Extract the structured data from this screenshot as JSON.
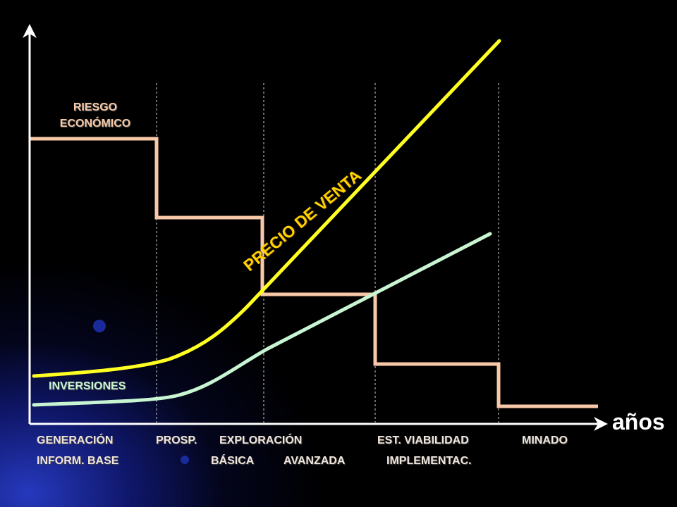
{
  "labels": {
    "riesgo_line1": "RIESGO",
    "riesgo_line2": "ECONÓMICO",
    "inversiones": "INVERSIONES",
    "precio_venta": "PRECIO DE VENTA",
    "x_axis": "años"
  },
  "phases_row1": [
    "GENERACIÓN",
    "PROSP.",
    "EXPLORACIÓN",
    "EST. VIABILIDAD",
    "MINADO"
  ],
  "phases_row2": [
    "INFORM. BASE",
    "BÁSICA",
    "AVANZADA",
    "IMPLEMENTAC."
  ],
  "colors": {
    "background": "#000000",
    "riesgo": "#f7c9a8",
    "precio": "#ffff22",
    "inversiones": "#c8f5d2",
    "axis": "#ffffff"
  }
}
